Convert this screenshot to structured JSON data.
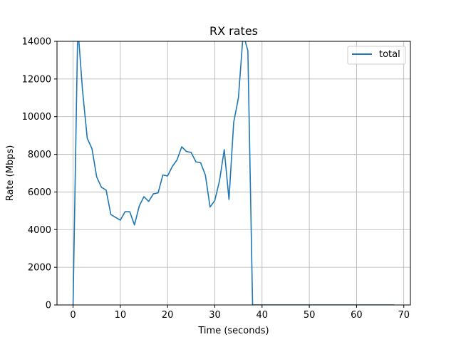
{
  "chart_data": {
    "type": "line",
    "title": "RX rates",
    "xlabel": "Time (seconds)",
    "ylabel": "Rate (Mbps)",
    "xlim": [
      -3.4,
      71.4
    ],
    "ylim": [
      0,
      14000
    ],
    "xticks": [
      0,
      10,
      20,
      30,
      40,
      50,
      60,
      70
    ],
    "yticks": [
      0,
      2000,
      4000,
      6000,
      8000,
      10000,
      12000,
      14000
    ],
    "grid": true,
    "legend_position": "top-right",
    "series": [
      {
        "name": "total",
        "color": "#1f77b4",
        "x": [
          0,
          1,
          2,
          3,
          4,
          5,
          6,
          7,
          8,
          9,
          10,
          11,
          12,
          13,
          14,
          15,
          16,
          17,
          18,
          19,
          20,
          21,
          22,
          23,
          24,
          25,
          26,
          27,
          28,
          29,
          30,
          31,
          32,
          33,
          34,
          35,
          36,
          37,
          38,
          39,
          40,
          41,
          42,
          43,
          44,
          45,
          46,
          47,
          48,
          49,
          50,
          51,
          52,
          53,
          54,
          55,
          56,
          57,
          58,
          59,
          60,
          61,
          62,
          63,
          64,
          65,
          66,
          67,
          68
        ],
        "y": [
          0,
          14800,
          11400,
          8850,
          8300,
          6800,
          6250,
          6100,
          4800,
          4650,
          4500,
          4950,
          4950,
          4250,
          5250,
          5750,
          5500,
          5900,
          5950,
          6900,
          6850,
          7350,
          7700,
          8400,
          8150,
          8100,
          7600,
          7550,
          6900,
          5200,
          5550,
          6600,
          8250,
          5600,
          9700,
          11000,
          14400,
          13500,
          0,
          0,
          0,
          0,
          0,
          0,
          0,
          0,
          0,
          0,
          0,
          0,
          0,
          0,
          0,
          0,
          0,
          0,
          0,
          0,
          0,
          0,
          0,
          0,
          0,
          0,
          0,
          0,
          0,
          0,
          0
        ]
      }
    ]
  }
}
